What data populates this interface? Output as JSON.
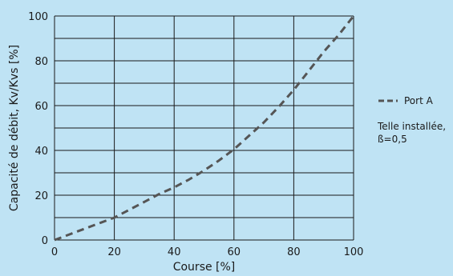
{
  "chart_data": {
    "type": "line",
    "xlabel": "Course [%]",
    "ylabel": "Capacité de débit, Kv/Kvs [%]",
    "xlim": [
      0,
      100
    ],
    "ylim": [
      0,
      100
    ],
    "x_ticks": [
      0,
      20,
      40,
      60,
      80,
      100
    ],
    "y_ticks": [
      0,
      20,
      40,
      60,
      80,
      100
    ],
    "x_grid": [
      0,
      20,
      40,
      60,
      80,
      100
    ],
    "y_grid": [
      0,
      10,
      20,
      30,
      40,
      50,
      60,
      70,
      80,
      90,
      100
    ],
    "grid": true,
    "legend_position": "right",
    "series": [
      {
        "name": "Port A",
        "style": "dashed",
        "color": "#555555",
        "x": [
          0,
          5,
          10,
          15,
          20,
          25,
          30,
          35,
          40,
          45,
          50,
          55,
          60,
          65,
          70,
          75,
          80,
          85,
          90,
          95,
          100
        ],
        "y": [
          0,
          2.5,
          5,
          7.5,
          10,
          13.5,
          17,
          20.5,
          23.5,
          27,
          31,
          35.5,
          40.5,
          46.5,
          52.5,
          59.5,
          67,
          75.5,
          84,
          91.5,
          100
        ]
      }
    ],
    "annotation_lines": [
      "Telle installée,",
      "ß=0,5"
    ]
  }
}
